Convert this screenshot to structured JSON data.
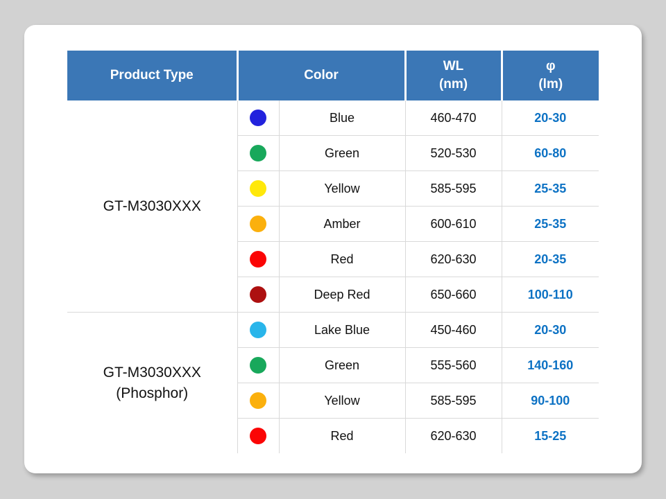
{
  "colors": {
    "page_background": "#d2d2d2",
    "card_background": "#ffffff",
    "header_bg": "#3b77b6",
    "header_text": "#ffffff",
    "border_gray": "#d9d9d9",
    "body_text": "#111111",
    "value_blue": "#0d72c4"
  },
  "table": {
    "header": {
      "product_type": "Product Type",
      "color": "Color",
      "wl_line1": "WL",
      "wl_line2": "(nm)",
      "phi_line1": "φ",
      "phi_line2": "(lm)"
    },
    "groups": [
      {
        "product_type_lines": [
          "GT-M3030XXX"
        ],
        "rows": [
          {
            "dot_color": "#2222dd",
            "color_name": "Blue",
            "wl_nm": "460-470",
            "flux_lm": "20-30"
          },
          {
            "dot_color": "#18a85b",
            "color_name": "Green",
            "wl_nm": "520-530",
            "flux_lm": "60-80"
          },
          {
            "dot_color": "#ffe80a",
            "color_name": "Yellow",
            "wl_nm": "585-595",
            "flux_lm": "25-35"
          },
          {
            "dot_color": "#fbb00d",
            "color_name": "Amber",
            "wl_nm": "600-610",
            "flux_lm": "25-35"
          },
          {
            "dot_color": "#fb0505",
            "color_name": "Red",
            "wl_nm": "620-630",
            "flux_lm": "20-35"
          },
          {
            "dot_color": "#ad1010",
            "color_name": "Deep Red",
            "wl_nm": "650-660",
            "flux_lm": "100-110"
          }
        ]
      },
      {
        "product_type_lines": [
          "GT-M3030XXX",
          "(Phosphor)"
        ],
        "rows": [
          {
            "dot_color": "#29b5ea",
            "color_name": "Lake Blue",
            "wl_nm": "450-460",
            "flux_lm": "20-30"
          },
          {
            "dot_color": "#18a85b",
            "color_name": "Green",
            "wl_nm": "555-560",
            "flux_lm": "140-160"
          },
          {
            "dot_color": "#fbb00d",
            "color_name": "Yellow",
            "wl_nm": "585-595",
            "flux_lm": "90-100"
          },
          {
            "dot_color": "#fb0505",
            "color_name": "Red",
            "wl_nm": "620-630",
            "flux_lm": "15-25"
          }
        ]
      }
    ]
  }
}
